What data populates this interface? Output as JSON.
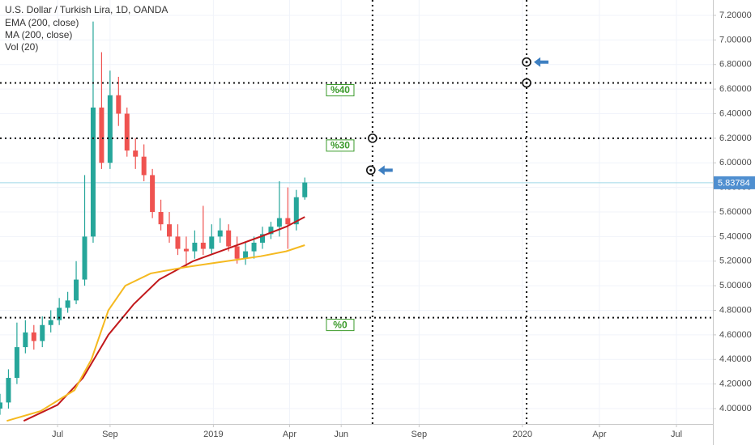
{
  "chart_data": {
    "type": "candlestick",
    "title": "U.S. Dollar / Turkish Lira, 1D, OANDA",
    "legend_items": [
      "EMA (200, close)",
      "MA (200, close)",
      "Vol (20)"
    ],
    "xlim": [
      -68,
      774
    ],
    "ylim": [
      3.875,
      7.325
    ],
    "grid": true,
    "xticks": [
      {
        "value": 0,
        "label": "Jul"
      },
      {
        "value": 62,
        "label": "Sep"
      },
      {
        "value": 184,
        "label": "2019"
      },
      {
        "value": 274,
        "label": "Apr"
      },
      {
        "value": 335,
        "label": "Jun"
      },
      {
        "value": 427,
        "label": "Sep"
      },
      {
        "value": 549,
        "label": "2020"
      },
      {
        "value": 640,
        "label": "Apr"
      },
      {
        "value": 731,
        "label": "Jul"
      }
    ],
    "yticks": [
      {
        "value": 4.0,
        "label": "4.00000"
      },
      {
        "value": 4.2,
        "label": "4.20000"
      },
      {
        "value": 4.4,
        "label": "4.40000"
      },
      {
        "value": 4.6,
        "label": "4.60000"
      },
      {
        "value": 4.8,
        "label": "4.80000"
      },
      {
        "value": 5.0,
        "label": "5.00000"
      },
      {
        "value": 5.2,
        "label": "5.20000"
      },
      {
        "value": 5.4,
        "label": "5.40000"
      },
      {
        "value": 5.6,
        "label": "5.60000"
      },
      {
        "value": 5.8,
        "label": "5.80000"
      },
      {
        "value": 6.0,
        "label": "6.00000"
      },
      {
        "value": 6.2,
        "label": "6.20000"
      },
      {
        "value": 6.4,
        "label": "6.40000"
      },
      {
        "value": 6.6,
        "label": "6.60000"
      },
      {
        "value": 6.8,
        "label": "6.80000"
      },
      {
        "value": 7.0,
        "label": "7.00000"
      },
      {
        "value": 7.2,
        "label": "7.20000"
      }
    ],
    "candles": {
      "up_color": "#26a69a",
      "down_color": "#ef5350",
      "x": [
        -68,
        -58,
        -48,
        -38,
        -28,
        -18,
        -8,
        2,
        12,
        22,
        32,
        42,
        52,
        62,
        72,
        82,
        92,
        102,
        112,
        122,
        132,
        142,
        152,
        162,
        172,
        182,
        192,
        202,
        212,
        222,
        232,
        242,
        252,
        262,
        272,
        282,
        292
      ],
      "open": [
        4.0,
        4.05,
        4.25,
        4.5,
        4.62,
        4.55,
        4.68,
        4.72,
        4.82,
        4.88,
        5.05,
        5.4,
        6.45,
        6.0,
        6.55,
        6.4,
        6.1,
        6.05,
        5.9,
        5.6,
        5.5,
        5.4,
        5.3,
        5.28,
        5.35,
        5.3,
        5.4,
        5.45,
        5.32,
        5.22,
        5.28,
        5.35,
        5.42,
        5.48,
        5.55,
        5.5,
        5.72
      ],
      "high": [
        4.12,
        4.32,
        4.7,
        4.72,
        4.68,
        4.75,
        4.8,
        4.9,
        4.95,
        5.2,
        5.9,
        7.15,
        6.9,
        6.75,
        6.7,
        6.45,
        6.2,
        6.15,
        5.95,
        5.7,
        5.6,
        5.5,
        5.4,
        5.45,
        5.65,
        5.5,
        5.55,
        5.5,
        5.4,
        5.35,
        5.4,
        5.48,
        5.52,
        5.85,
        5.8,
        5.78,
        5.88
      ],
      "low": [
        3.95,
        4.0,
        4.2,
        4.45,
        4.48,
        4.5,
        4.62,
        4.68,
        4.78,
        4.85,
        5.0,
        5.35,
        5.95,
        5.95,
        6.3,
        6.05,
        5.95,
        5.85,
        5.55,
        5.45,
        5.35,
        5.25,
        5.15,
        5.22,
        5.25,
        5.25,
        5.35,
        5.28,
        5.18,
        5.17,
        5.22,
        5.3,
        5.38,
        5.4,
        5.3,
        5.45,
        5.7
      ],
      "close": [
        4.05,
        4.25,
        4.5,
        4.62,
        4.55,
        4.68,
        4.72,
        4.82,
        4.88,
        5.05,
        5.4,
        6.45,
        6.0,
        6.55,
        6.4,
        6.1,
        6.05,
        5.9,
        5.6,
        5.5,
        5.4,
        5.3,
        5.28,
        5.35,
        5.3,
        5.4,
        5.45,
        5.32,
        5.22,
        5.28,
        5.35,
        5.42,
        5.48,
        5.55,
        5.5,
        5.72,
        5.84
      ]
    },
    "lines": [
      {
        "name": "EMA (200, close)",
        "color": "#c2181b",
        "x": [
          -40,
          0,
          30,
          60,
          90,
          120,
          160,
          200,
          240,
          270,
          292
        ],
        "values": [
          3.9,
          4.03,
          4.25,
          4.6,
          4.85,
          5.05,
          5.2,
          5.3,
          5.4,
          5.48,
          5.56
        ]
      },
      {
        "name": "MA (200, close)",
        "color": "#f5b920",
        "x": [
          -60,
          -20,
          20,
          40,
          60,
          80,
          110,
          150,
          200,
          240,
          270,
          292
        ],
        "values": [
          3.9,
          3.98,
          4.15,
          4.4,
          4.8,
          5.0,
          5.1,
          5.15,
          5.2,
          5.24,
          5.28,
          5.33
        ]
      }
    ],
    "last_price": 5.83784,
    "hlines": [
      {
        "value": 6.65,
        "label": "%40"
      },
      {
        "value": 6.2,
        "label": "%30"
      },
      {
        "value": 4.74,
        "label": "%0"
      }
    ],
    "vlines": [
      372,
      554
    ],
    "points": {
      "x": [
        372,
        370,
        554,
        554
      ],
      "y": [
        6.2,
        5.94,
        6.82,
        6.65
      ],
      "arrows": [
        false,
        true,
        true,
        false
      ]
    }
  }
}
